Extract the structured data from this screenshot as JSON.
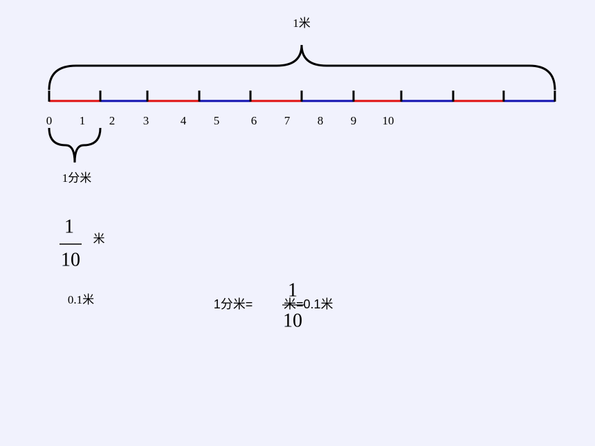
{
  "top_label": "1米",
  "ruler_labels": [
    "0",
    "1",
    "2",
    "3",
    "4",
    "5",
    "6",
    "7",
    "8",
    "9",
    "10"
  ],
  "brace_label": "1分米",
  "fraction": {
    "numerator": "1",
    "denominator": "10",
    "unit": "米"
  },
  "decimal": "0.1米",
  "equation": {
    "left": "1分米=",
    "numerator": "1",
    "denominator": "10",
    "right": "米=0.1米"
  }
}
